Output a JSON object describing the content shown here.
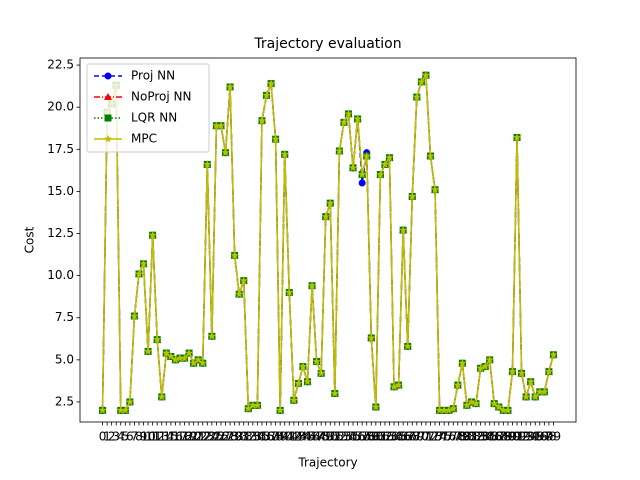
{
  "chart_data": {
    "type": "line",
    "title": "Trajectory evaluation",
    "x_label": "Trajectory",
    "y_label": "Cost",
    "x": [
      0,
      1,
      2,
      3,
      4,
      5,
      6,
      7,
      8,
      9,
      10,
      11,
      12,
      13,
      14,
      15,
      16,
      17,
      18,
      19,
      20,
      21,
      22,
      23,
      24,
      25,
      26,
      27,
      28,
      29,
      30,
      31,
      32,
      33,
      34,
      35,
      36,
      37,
      38,
      39,
      40,
      41,
      42,
      43,
      44,
      45,
      46,
      47,
      48,
      49,
      50,
      51,
      52,
      53,
      54,
      55,
      56,
      57,
      58,
      59,
      60,
      61,
      62,
      63,
      64,
      65,
      66,
      67,
      68,
      69,
      70,
      71,
      72,
      73,
      74,
      75,
      76,
      77,
      78,
      79,
      80,
      81,
      82,
      83,
      84,
      85,
      86,
      87,
      88,
      89,
      90,
      91,
      92,
      93,
      94,
      95,
      96,
      97,
      98,
      99
    ],
    "xticks": [
      0,
      1,
      2,
      3,
      4,
      5,
      6,
      7,
      8,
      9,
      10,
      11,
      12,
      13,
      14,
      15,
      16,
      17,
      18,
      19,
      20,
      21,
      22,
      23,
      24,
      25,
      26,
      27,
      28,
      29,
      30,
      31,
      32,
      33,
      34,
      35,
      36,
      37,
      38,
      39,
      40,
      41,
      42,
      43,
      44,
      45,
      46,
      47,
      48,
      49,
      50,
      51,
      52,
      53,
      54,
      55,
      56,
      57,
      58,
      59,
      60,
      61,
      62,
      63,
      64,
      65,
      66,
      67,
      68,
      69,
      70,
      71,
      72,
      73,
      74,
      75,
      76,
      77,
      78,
      79,
      80,
      81,
      82,
      83,
      84,
      85,
      86,
      87,
      88,
      89,
      90,
      91,
      92,
      93,
      94,
      95,
      96,
      97,
      98,
      99
    ],
    "xlim": [
      -4.95,
      103.95
    ],
    "ylim": [
      1.31,
      22.92
    ],
    "yticks": [
      2.5,
      {
        "value": 5,
        "label": "5.0"
      },
      7.5,
      {
        "value": 10,
        "label": "10.0"
      },
      12.5,
      {
        "value": 15,
        "label": "15.0"
      },
      17.5,
      {
        "value": 20,
        "label": "20.0"
      },
      22.5
    ],
    "legend": "upper left",
    "series": [
      {
        "name": "Proj NN",
        "color": "#0000ff",
        "dash": "5,3",
        "marker": "circle",
        "values": [
          2.0,
          19.7,
          20.2,
          21.3,
          2.0,
          2.0,
          2.5,
          7.6,
          10.1,
          10.7,
          5.5,
          12.4,
          6.2,
          2.8,
          5.4,
          5.2,
          5.0,
          5.1,
          5.1,
          5.4,
          4.8,
          5.0,
          4.8,
          16.6,
          6.4,
          18.9,
          18.9,
          17.3,
          21.2,
          11.2,
          8.9,
          9.7,
          2.1,
          2.3,
          2.3,
          19.2,
          20.7,
          21.4,
          18.1,
          2.0,
          17.2,
          9.0,
          2.6,
          3.6,
          4.6,
          3.7,
          9.4,
          4.9,
          4.2,
          13.5,
          14.3,
          3.0,
          17.4,
          19.1,
          19.6,
          16.4,
          19.3,
          15.5,
          17.3,
          6.3,
          2.2,
          16.0,
          16.6,
          17.0,
          3.4,
          3.5,
          12.7,
          5.8,
          14.7,
          20.6,
          21.5,
          21.9,
          17.1,
          15.1,
          2.0,
          2.0,
          2.0,
          2.1,
          3.5,
          4.8,
          2.3,
          2.5,
          2.4,
          4.5,
          4.6,
          5.0,
          2.4,
          2.2,
          2.0,
          2.0,
          4.3,
          18.2,
          4.2,
          2.8,
          3.7,
          2.8,
          3.1,
          3.1,
          4.3,
          5.3
        ]
      },
      {
        "name": "NoProj NN",
        "color": "#ff0000",
        "dash": "6,2,1,2",
        "marker": "triangle",
        "values": [
          2.0,
          19.7,
          20.2,
          21.3,
          2.0,
          2.0,
          2.5,
          7.6,
          10.1,
          10.7,
          5.5,
          12.4,
          6.2,
          2.8,
          5.4,
          5.2,
          5.0,
          5.1,
          5.1,
          5.4,
          4.8,
          5.0,
          4.8,
          16.6,
          6.4,
          18.9,
          18.9,
          17.3,
          21.2,
          11.2,
          8.9,
          9.7,
          2.1,
          2.3,
          2.3,
          19.2,
          20.7,
          21.4,
          18.1,
          2.0,
          17.2,
          9.0,
          2.6,
          3.6,
          4.6,
          3.7,
          9.4,
          4.9,
          4.2,
          13.5,
          14.3,
          3.0,
          17.4,
          19.1,
          19.6,
          16.4,
          19.3,
          16.0,
          17.1,
          6.3,
          2.2,
          16.0,
          16.6,
          17.0,
          3.4,
          3.5,
          12.7,
          5.8,
          14.7,
          20.6,
          21.5,
          21.9,
          17.1,
          15.1,
          2.0,
          2.0,
          2.0,
          2.1,
          3.5,
          4.8,
          2.3,
          2.5,
          2.4,
          4.5,
          4.6,
          5.0,
          2.4,
          2.2,
          2.0,
          2.0,
          4.3,
          18.2,
          4.2,
          2.8,
          3.7,
          2.8,
          3.1,
          3.1,
          4.3,
          5.3
        ]
      },
      {
        "name": "LQR NN",
        "color": "#008000",
        "dash": "1.5,2",
        "marker": "square",
        "values": [
          2.0,
          19.7,
          20.2,
          21.3,
          2.0,
          2.0,
          2.5,
          7.6,
          10.1,
          10.7,
          5.5,
          12.4,
          6.2,
          2.8,
          5.4,
          5.2,
          5.0,
          5.1,
          5.1,
          5.4,
          4.8,
          5.0,
          4.8,
          16.6,
          6.4,
          18.9,
          18.9,
          17.3,
          21.2,
          11.2,
          8.9,
          9.7,
          2.1,
          2.3,
          2.3,
          19.2,
          20.7,
          21.4,
          18.1,
          2.0,
          17.2,
          9.0,
          2.6,
          3.6,
          4.6,
          3.7,
          9.4,
          4.9,
          4.2,
          13.5,
          14.3,
          3.0,
          17.4,
          19.1,
          19.6,
          16.4,
          19.3,
          16.0,
          17.1,
          6.3,
          2.2,
          16.0,
          16.6,
          17.0,
          3.4,
          3.5,
          12.7,
          5.8,
          14.7,
          20.6,
          21.5,
          21.9,
          17.1,
          15.1,
          2.0,
          2.0,
          2.0,
          2.1,
          3.5,
          4.8,
          2.3,
          2.5,
          2.4,
          4.5,
          4.6,
          5.0,
          2.4,
          2.2,
          2.0,
          2.0,
          4.3,
          18.2,
          4.2,
          2.8,
          3.7,
          2.8,
          3.1,
          3.1,
          4.3,
          5.3
        ]
      },
      {
        "name": "MPC",
        "color": "#bfbf00",
        "dash": "",
        "marker": "star",
        "values": [
          2.0,
          19.7,
          20.2,
          21.3,
          2.0,
          2.0,
          2.5,
          7.6,
          10.1,
          10.7,
          5.5,
          12.4,
          6.2,
          2.8,
          5.4,
          5.2,
          5.0,
          5.1,
          5.1,
          5.4,
          4.8,
          5.0,
          4.8,
          16.6,
          6.4,
          18.9,
          18.9,
          17.3,
          21.2,
          11.2,
          8.9,
          9.7,
          2.1,
          2.3,
          2.3,
          19.2,
          20.7,
          21.4,
          18.1,
          2.0,
          17.2,
          9.0,
          2.6,
          3.6,
          4.6,
          3.7,
          9.4,
          4.9,
          4.2,
          13.5,
          14.3,
          3.0,
          17.4,
          19.1,
          19.6,
          16.4,
          19.3,
          16.0,
          17.1,
          6.3,
          2.2,
          16.0,
          16.6,
          17.0,
          3.4,
          3.5,
          12.7,
          5.8,
          14.7,
          20.6,
          21.5,
          21.9,
          17.1,
          15.1,
          2.0,
          2.0,
          2.0,
          2.1,
          3.5,
          4.8,
          2.3,
          2.5,
          2.4,
          4.5,
          4.6,
          5.0,
          2.4,
          2.2,
          2.0,
          2.0,
          4.3,
          18.2,
          4.2,
          2.8,
          3.7,
          2.8,
          3.1,
          3.1,
          4.3,
          5.3
        ]
      }
    ]
  }
}
